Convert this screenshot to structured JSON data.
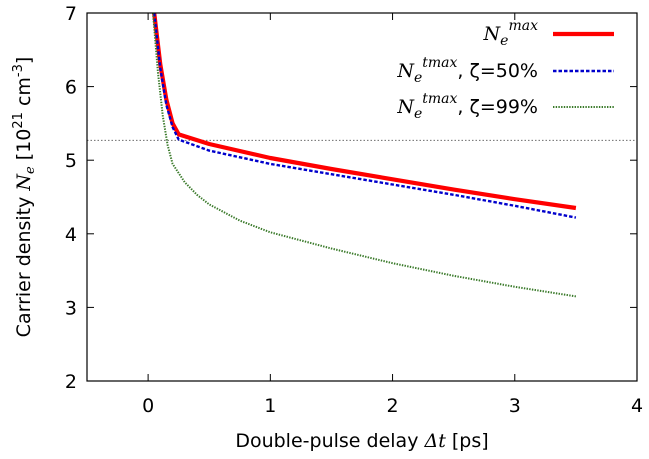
{
  "chart_data": {
    "type": "line",
    "xlabel": {
      "prefix": "Double-pulse delay ",
      "math": "Δt",
      "suffix": "  [ps]"
    },
    "ylabel": {
      "prefix": "Carrier density ",
      "math": "N",
      "math_sub": "e",
      "unit_open": "  [10",
      "unit_exp1": "21",
      "unit_mid": " cm",
      "unit_exp2": "-3",
      "unit_close": "]"
    },
    "xlim": [
      -0.5,
      4
    ],
    "ylim": [
      2,
      7
    ],
    "x_ticks": [
      0,
      1,
      2,
      3,
      4
    ],
    "y_ticks": [
      2,
      3,
      4,
      5,
      6,
      7
    ],
    "grid": false,
    "legend_position": "top-right",
    "reference_line": {
      "y": 5.27,
      "style": "dotted",
      "color": "#555555"
    },
    "series": [
      {
        "name": "N_e^max",
        "legend": {
          "math": "N",
          "sub": "e",
          "sup": "max",
          "suffix": ""
        },
        "color": "#ff0000",
        "style": "solid",
        "x": [
          0.05,
          0.1,
          0.15,
          0.2,
          0.25,
          0.5,
          1.0,
          1.5,
          2.0,
          2.5,
          3.0,
          3.5
        ],
        "y": [
          7.0,
          6.3,
          5.82,
          5.5,
          5.35,
          5.22,
          5.03,
          4.88,
          4.74,
          4.6,
          4.47,
          4.35
        ]
      },
      {
        "name": "N_e^tmax, ζ=50%",
        "legend": {
          "math": "N",
          "sub": "e",
          "sup": "tmax",
          "suffix": ", ζ=50%"
        },
        "color": "#0000cc",
        "style": "dashed",
        "x": [
          0.05,
          0.1,
          0.15,
          0.2,
          0.25,
          0.5,
          1.0,
          1.5,
          2.0,
          2.5,
          3.0,
          3.5
        ],
        "y": [
          7.0,
          6.25,
          5.75,
          5.45,
          5.28,
          5.13,
          4.95,
          4.81,
          4.67,
          4.53,
          4.38,
          4.22
        ]
      },
      {
        "name": "N_e^tmax, ζ=99%",
        "legend": {
          "math": "N",
          "sub": "e",
          "sup": "tmax",
          "suffix": ", ζ=99%"
        },
        "color": "#3a7a2a",
        "style": "dotted",
        "x": [
          0.04,
          0.08,
          0.12,
          0.16,
          0.2,
          0.3,
          0.4,
          0.5,
          0.75,
          1.0,
          1.5,
          2.0,
          2.5,
          3.0,
          3.5
        ],
        "y": [
          7.0,
          6.2,
          5.6,
          5.2,
          4.95,
          4.7,
          4.53,
          4.4,
          4.18,
          4.02,
          3.8,
          3.6,
          3.43,
          3.28,
          3.15
        ]
      }
    ]
  }
}
